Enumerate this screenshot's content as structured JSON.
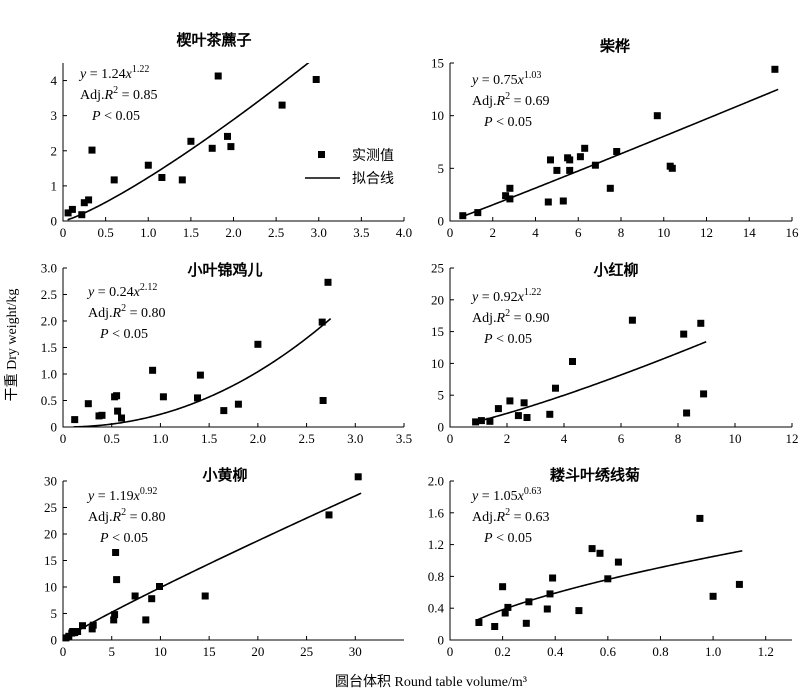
{
  "figure": {
    "ylabel": "干重 Dry weight/kg",
    "xlabel": "圆台体积 Round table volume/m³",
    "legend": {
      "observed": "实测值",
      "fitted": "拟合线"
    }
  },
  "chart_data": [
    {
      "type": "scatter",
      "title": "楔叶茶藨子",
      "xlim": [
        0,
        4.0
      ],
      "ylim": [
        0,
        4.5
      ],
      "xticks": [
        "0",
        "0.5",
        "1.0",
        "1.5",
        "2.0",
        "2.5",
        "3.0",
        "3.5",
        "4.0"
      ],
      "yticks": [
        "0",
        "1",
        "2",
        "3",
        "4"
      ],
      "fit": {
        "a": 1.24,
        "b": 1.22
      },
      "eq": {
        "a": "1.24",
        "b": "1.22",
        "r2": "0.85",
        "p": "0.05"
      },
      "x": [
        0.06,
        0.11,
        0.22,
        0.25,
        0.3,
        0.34,
        0.6,
        1.0,
        1.16,
        1.4,
        1.5,
        1.75,
        1.82,
        1.93,
        1.97,
        2.57,
        2.97
      ],
      "y": [
        0.23,
        0.33,
        0.18,
        0.52,
        0.6,
        2.02,
        1.17,
        1.59,
        1.24,
        1.17,
        2.27,
        2.07,
        4.13,
        2.41,
        2.12,
        3.3,
        4.03
      ]
    },
    {
      "type": "scatter",
      "title": "柴桦",
      "xlim": [
        0,
        16
      ],
      "ylim": [
        0,
        15
      ],
      "xticks": [
        "0",
        "2",
        "4",
        "6",
        "8",
        "10",
        "12",
        "14",
        "16"
      ],
      "yticks": [
        "0",
        "5",
        "10",
        "15"
      ],
      "fit": {
        "a": 0.75,
        "b": 1.03
      },
      "eq": {
        "a": "0.75",
        "b": "1.03",
        "r2": "0.69",
        "p": "0.05"
      },
      "x": [
        0.6,
        1.3,
        2.6,
        2.8,
        2.8,
        4.6,
        4.7,
        5.0,
        5.3,
        5.5,
        5.6,
        5.6,
        6.1,
        6.3,
        6.8,
        7.5,
        7.8,
        9.7,
        10.3,
        10.4,
        15.2
      ],
      "y": [
        0.5,
        0.8,
        2.4,
        2.1,
        3.1,
        1.8,
        5.8,
        4.8,
        1.9,
        6.0,
        4.8,
        5.8,
        6.1,
        6.9,
        5.3,
        3.1,
        6.6,
        10.0,
        5.2,
        5.0,
        14.4
      ]
    },
    {
      "type": "scatter",
      "title": "小叶锦鸡儿",
      "xlim": [
        0,
        3.5
      ],
      "ylim": [
        0,
        3.0
      ],
      "xticks": [
        "0",
        "0.5",
        "1.0",
        "1.5",
        "2.0",
        "2.5",
        "3.0",
        "3.5"
      ],
      "yticks": [
        "0",
        "0.5",
        "1.0",
        "1.5",
        "2.0",
        "2.5",
        "3.0"
      ],
      "fit": {
        "a": 0.24,
        "b": 2.12
      },
      "eq": {
        "a": "0.24",
        "b": "2.12",
        "r2": "0.80",
        "p": "0.05"
      },
      "x": [
        0.12,
        0.26,
        0.37,
        0.4,
        0.53,
        0.55,
        0.56,
        0.6,
        0.92,
        1.03,
        1.38,
        1.41,
        1.65,
        1.8,
        2.0,
        2.66,
        2.67,
        2.72
      ],
      "y": [
        0.14,
        0.44,
        0.21,
        0.22,
        0.57,
        0.59,
        0.3,
        0.17,
        1.07,
        0.57,
        0.55,
        0.98,
        0.31,
        0.43,
        1.56,
        1.98,
        0.5,
        2.73
      ]
    },
    {
      "type": "scatter",
      "title": "小红柳",
      "xlim": [
        0,
        12
      ],
      "ylim": [
        0,
        25
      ],
      "xticks": [
        "0",
        "2",
        "4",
        "6",
        "8",
        "10",
        "12"
      ],
      "yticks": [
        "0",
        "5",
        "10",
        "15",
        "20",
        "25"
      ],
      "fit": {
        "a": 0.92,
        "b": 1.22
      },
      "eq": {
        "a": "0.92",
        "b": "1.22",
        "r2": "0.90",
        "p": "0.05"
      },
      "x": [
        0.9,
        1.1,
        1.4,
        1.7,
        2.1,
        2.4,
        2.6,
        2.7,
        3.5,
        3.7,
        4.3,
        6.4,
        8.2,
        8.3,
        8.8,
        8.9
      ],
      "y": [
        0.8,
        1.0,
        0.9,
        2.9,
        4.1,
        1.8,
        3.8,
        1.5,
        2.0,
        6.1,
        10.3,
        16.8,
        14.6,
        2.2,
        16.3,
        5.2
      ]
    },
    {
      "type": "scatter",
      "title": "小黄柳",
      "xlim": [
        0,
        35
      ],
      "ylim": [
        0,
        30
      ],
      "xticks": [
        "0",
        "5",
        "10",
        "15",
        "20",
        "25",
        "30"
      ],
      "yticks": [
        "0",
        "5",
        "10",
        "15",
        "20",
        "25",
        "30"
      ],
      "fit": {
        "a": 1.19,
        "b": 0.92
      },
      "eq": {
        "a": "1.19",
        "b": "0.92",
        "r2": "0.80",
        "p": "0.05"
      },
      "x": [
        0.3,
        0.6,
        0.9,
        1.0,
        1.2,
        1.5,
        2.0,
        3.0,
        3.1,
        5.2,
        5.3,
        5.4,
        5.5,
        7.4,
        8.5,
        9.1,
        9.9,
        14.6,
        27.3,
        30.3
      ],
      "y": [
        0.4,
        0.7,
        1.3,
        1.6,
        1.4,
        1.6,
        2.7,
        2.1,
        2.8,
        3.8,
        4.8,
        16.5,
        11.4,
        8.3,
        3.8,
        7.8,
        10.1,
        8.3,
        23.6,
        30.8
      ]
    },
    {
      "type": "scatter",
      "title": "耧斗叶绣线菊",
      "xlim": [
        0,
        1.3
      ],
      "ylim": [
        0,
        2.0
      ],
      "xticks": [
        "0",
        "0.2",
        "0.4",
        "0.6",
        "0.8",
        "1.0",
        "1.2"
      ],
      "yticks": [
        "0",
        "0.4",
        "0.8",
        "1.2",
        "1.6",
        "2.0"
      ],
      "fit": {
        "a": 1.05,
        "b": 0.63
      },
      "eq": {
        "a": "1.05",
        "b": "0.63",
        "r2": "0.63",
        "p": "0.05"
      },
      "x": [
        0.11,
        0.17,
        0.2,
        0.21,
        0.22,
        0.29,
        0.3,
        0.37,
        0.38,
        0.39,
        0.49,
        0.54,
        0.57,
        0.6,
        0.64,
        0.95,
        1.0,
        1.1
      ],
      "y": [
        0.22,
        0.17,
        0.67,
        0.34,
        0.41,
        0.21,
        0.48,
        0.39,
        0.58,
        0.78,
        0.37,
        1.15,
        1.09,
        0.77,
        0.98,
        1.53,
        0.55,
        0.7
      ]
    }
  ]
}
